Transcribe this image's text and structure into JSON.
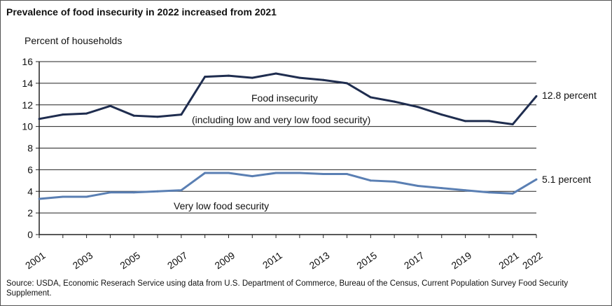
{
  "chart_data": {
    "type": "line",
    "title": "Prevalence of food insecurity in 2022 increased from 2021",
    "ylabel": "Percent of households",
    "xlabel": "",
    "x": [
      2001,
      2002,
      2003,
      2004,
      2005,
      2006,
      2007,
      2008,
      2009,
      2010,
      2011,
      2012,
      2013,
      2014,
      2015,
      2016,
      2017,
      2018,
      2019,
      2020,
      2021,
      2022
    ],
    "x_tick_labels": [
      "2001",
      "2003",
      "2005",
      "2007",
      "2009",
      "2011",
      "2013",
      "2015",
      "2017",
      "2019",
      "2021",
      "2022"
    ],
    "y_tick_labels": [
      "0",
      "2",
      "4",
      "6",
      "8",
      "10",
      "12",
      "14",
      "16"
    ],
    "ylim": [
      0,
      16
    ],
    "grid": "horizontal",
    "series": [
      {
        "name": "Food insecurity",
        "color": "#1f2d4f",
        "values": [
          10.7,
          11.1,
          11.2,
          11.9,
          11.0,
          10.9,
          11.1,
          14.6,
          14.7,
          14.5,
          14.9,
          14.5,
          14.3,
          14.0,
          12.7,
          12.3,
          11.8,
          11.1,
          10.5,
          10.5,
          10.2,
          12.8
        ]
      },
      {
        "name": "Very low food security",
        "color": "#5a7fb3",
        "values": [
          3.3,
          3.5,
          3.5,
          3.9,
          3.9,
          4.0,
          4.1,
          5.7,
          5.7,
          5.4,
          5.7,
          5.7,
          5.6,
          5.6,
          5.0,
          4.9,
          4.5,
          4.3,
          4.1,
          3.9,
          3.8,
          5.1
        ]
      }
    ],
    "annotations": {
      "food_insecurity_label": "Food insecurity",
      "food_insecurity_sublabel": "(including low and very low food security)",
      "very_low_label": "Very low food security",
      "end_label_1": "12.8 percent",
      "end_label_2": "5.1  percent"
    },
    "source": "Source: USDA, Economic Reserach Service using data from U.S. Department of Commerce, Bureau of the Census, Current Population Survey Food Security Supplement."
  }
}
